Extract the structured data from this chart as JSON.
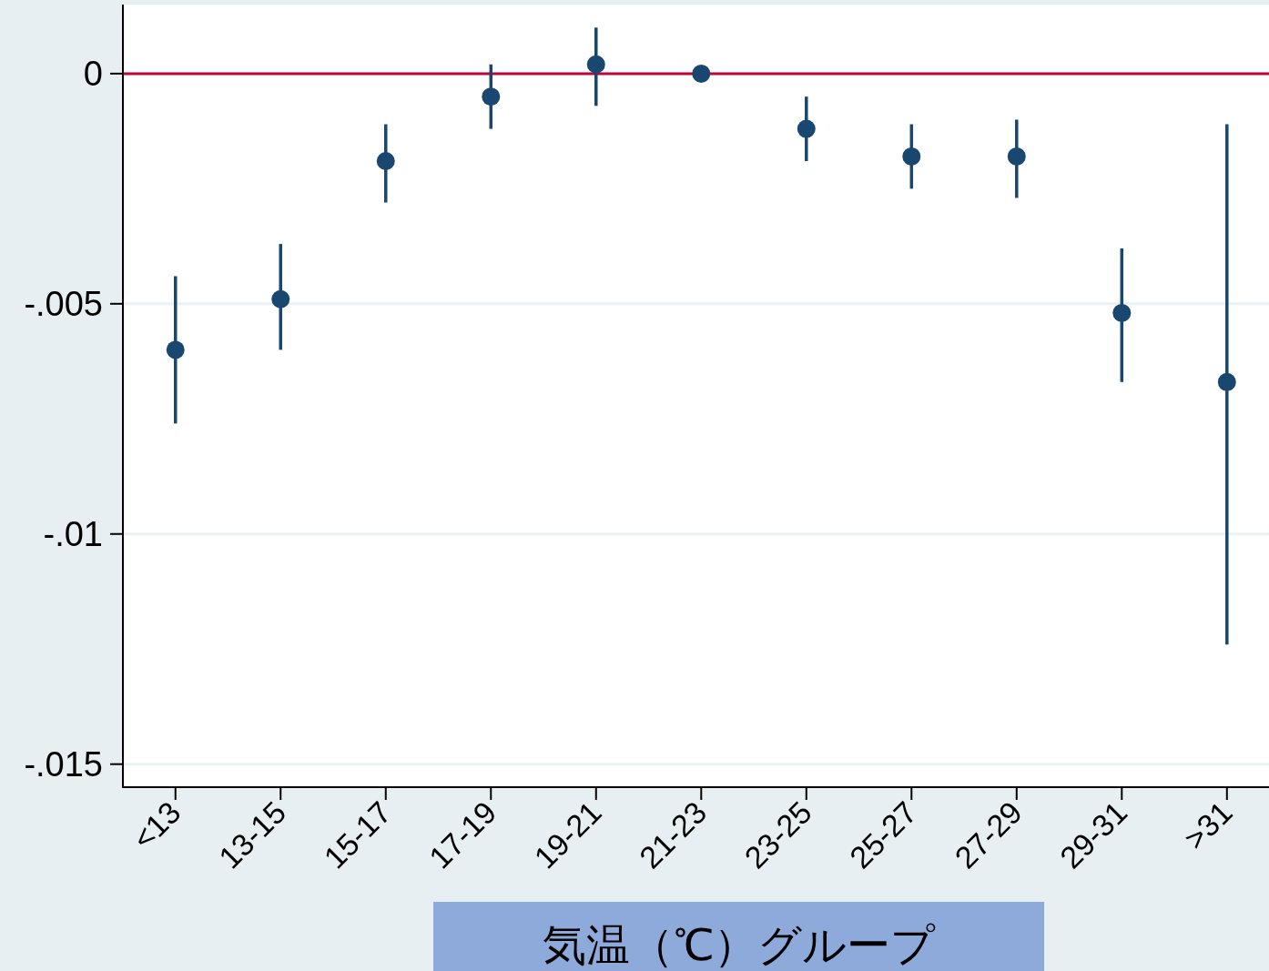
{
  "chart_data": {
    "type": "scatter",
    "xlabel": "気温（℃）グループ",
    "categories": [
      "<13",
      "13-15",
      "15-17",
      "17-19",
      "19-21",
      "21-23",
      "23-25",
      "25-27",
      "27-29",
      "29-31",
      ">31"
    ],
    "series": [
      {
        "color": "#1a476f",
        "values": [
          -0.006,
          -0.0049,
          -0.0019,
          -0.0005,
          0.0002,
          0,
          -0.0012,
          -0.0018,
          -0.0018,
          -0.0052,
          -0.0067
        ],
        "errors": [
          [
            -0.0076,
            -0.0044
          ],
          [
            -0.006,
            -0.0037
          ],
          [
            -0.0028,
            -0.0011
          ],
          [
            -0.0012,
            0.0002
          ],
          [
            -0.0007,
            0.001
          ],
          null,
          [
            -0.0019,
            -0.0005
          ],
          [
            -0.0025,
            -0.0011
          ],
          [
            -0.0027,
            -0.001
          ],
          [
            -0.0067,
            -0.0038
          ],
          [
            -0.0124,
            -0.0011
          ]
        ]
      }
    ],
    "ylim": [
      -0.0155,
      0.0015
    ],
    "yticks": [
      0,
      {
        "value": -0.005,
        "label": "-.005"
      },
      {
        "value": -0.01,
        "label": "-.01"
      },
      {
        "value": -0.015,
        "label": "-.015"
      }
    ],
    "grid": "y",
    "marker": "circle",
    "ref_lines": [
      {
        "axis": "y",
        "value": 0,
        "color": "#c10534"
      }
    ]
  }
}
